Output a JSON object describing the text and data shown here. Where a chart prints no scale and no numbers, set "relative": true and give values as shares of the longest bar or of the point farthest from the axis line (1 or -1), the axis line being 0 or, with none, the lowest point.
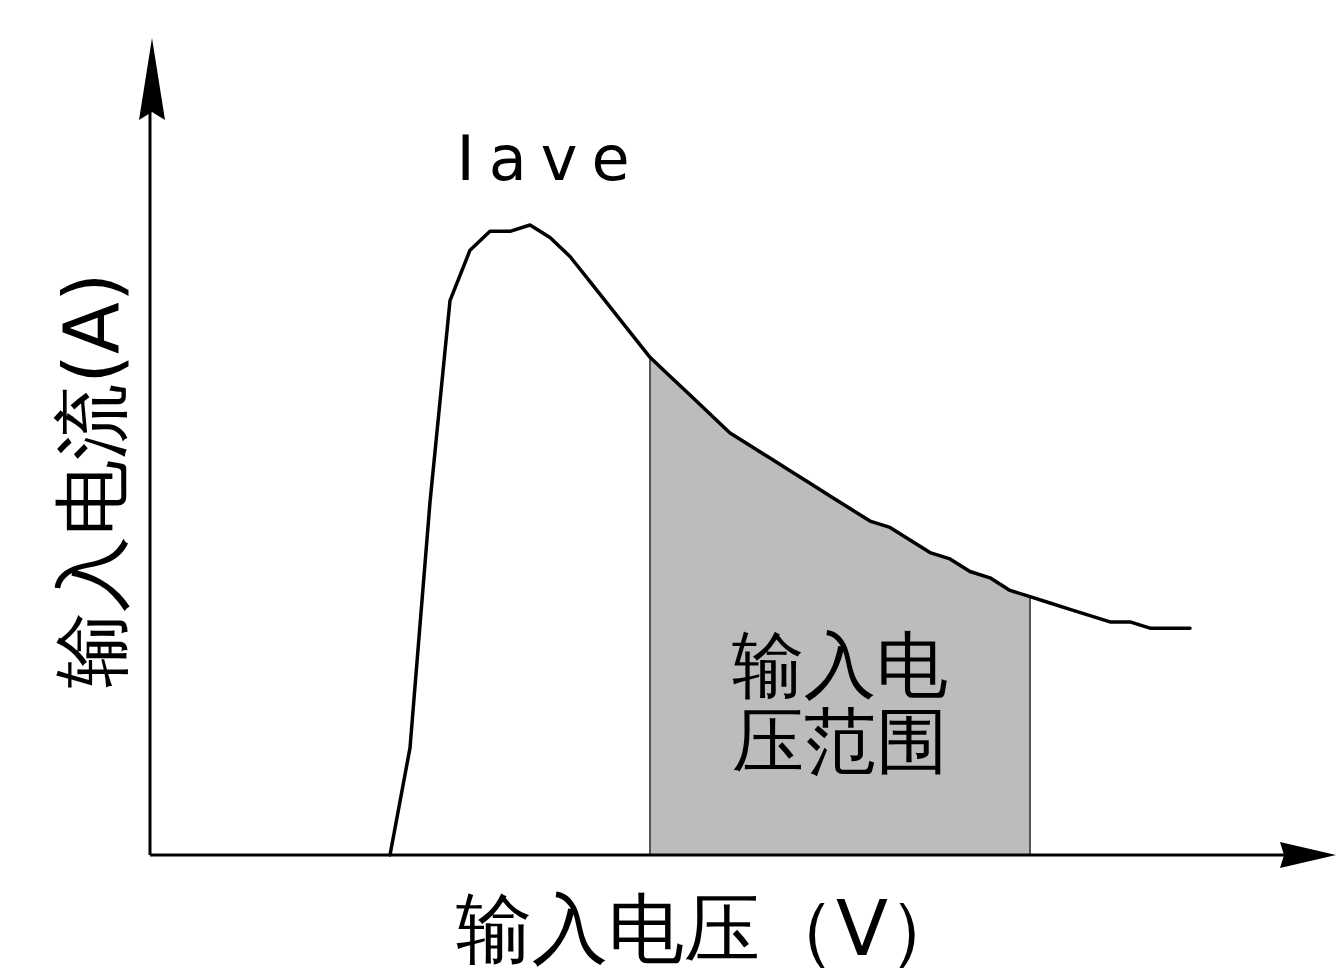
{
  "chart_data": {
    "type": "line",
    "relative": true,
    "xlabel": "输入电压（V）",
    "ylabel": "输入电流(A)",
    "categories": [
      null,
      null,
      null,
      null,
      null,
      null,
      null,
      null,
      null,
      null,
      null,
      null,
      null,
      null,
      null,
      null,
      null,
      null,
      null,
      null,
      null,
      null,
      null,
      null,
      null,
      null,
      null,
      null,
      null,
      null,
      null,
      null,
      null,
      null,
      null,
      null,
      null,
      null,
      null,
      null,
      null,
      null,
      null,
      null,
      null,
      null,
      null,
      null,
      null,
      null,
      null,
      null,
      null,
      null,
      null,
      null,
      null,
      null
    ],
    "series": [
      {
        "type": "area",
        "color": "#bbbcbe",
        "values": [
          null,
          null,
          null,
          null,
          null,
          null,
          null,
          null,
          null,
          null,
          null,
          null,
          null,
          null,
          null,
          null,
          null,
          null,
          null,
          null,
          null,
          null,
          null,
          null,
          null,
          0.79,
          0.76,
          0.73,
          0.7,
          0.67,
          0.65,
          0.63,
          0.61,
          0.59,
          0.57,
          0.55,
          0.53,
          0.52,
          0.5,
          0.48,
          0.47,
          0.45,
          0.44,
          0.42,
          0.41,
          null,
          null,
          null,
          null,
          null,
          null,
          null,
          null,
          null,
          null,
          null,
          null,
          null
        ]
      },
      {
        "color": "#000000",
        "values": [
          null,
          null,
          null,
          null,
          null,
          null,
          null,
          null,
          null,
          null,
          null,
          null,
          0,
          0.17,
          0.56,
          0.88,
          0.96,
          0.99,
          0.99,
          1.0,
          0.98,
          0.95,
          0.91,
          0.87,
          0.83,
          0.79,
          0.76,
          0.73,
          0.7,
          0.67,
          0.65,
          0.63,
          0.61,
          0.59,
          0.57,
          0.55,
          0.53,
          0.52,
          0.5,
          0.48,
          0.47,
          0.45,
          0.44,
          0.42,
          0.41,
          0.4,
          0.39,
          0.38,
          0.37,
          0.37,
          0.36,
          0.36,
          0.36,
          null,
          null,
          null,
          null,
          null
        ]
      }
    ],
    "annotations": [
      "Iave",
      "输入电压范围"
    ]
  }
}
